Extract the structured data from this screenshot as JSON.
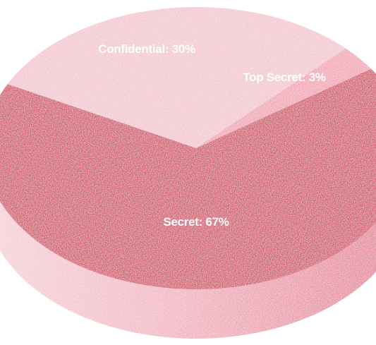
{
  "chart_data": {
    "type": "pie",
    "style": "3d",
    "title": "",
    "slices": [
      {
        "label": "Confidential",
        "value": 30,
        "display": "Confidential: 30%",
        "color": "#f3c7d0"
      },
      {
        "label": "Top Secret",
        "value": 3,
        "display": "Top Secret: 3%",
        "color": "#f1a5b4"
      },
      {
        "label": "Secret",
        "value": 67,
        "display": "Secret: 67%",
        "color": "#d2596c"
      }
    ],
    "legend": "none",
    "data_labels": "inside"
  }
}
